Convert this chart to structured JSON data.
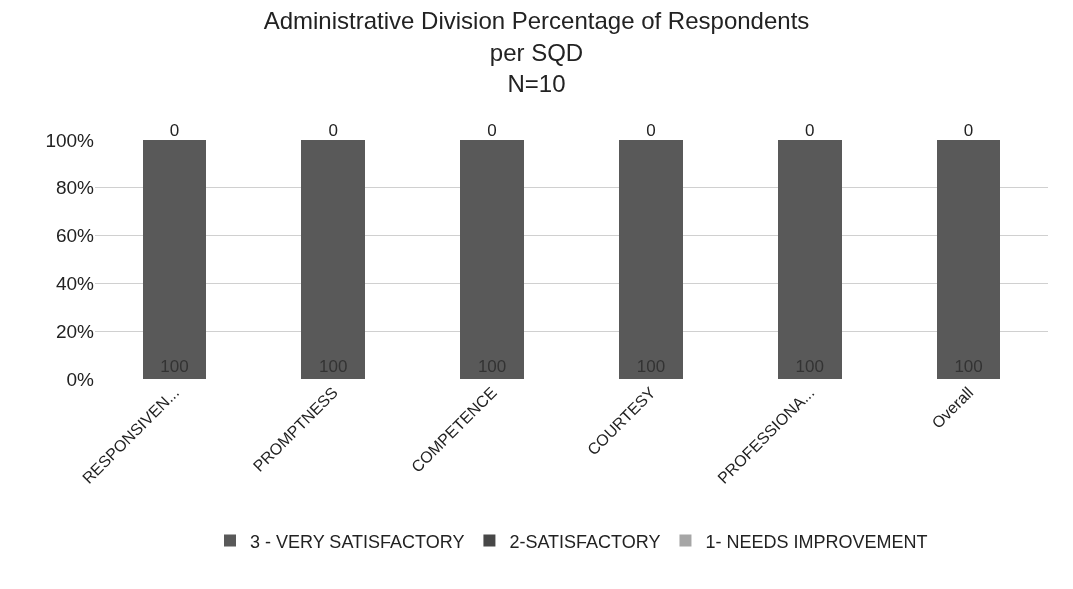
{
  "chart_data": {
    "type": "bar",
    "stacked": true,
    "title": "Administrative Division Percentage of Respondents\nper SQD\nN=10",
    "categories": [
      "RESPONSIVEN...",
      "PROMPTNESS",
      "COMPETENCE",
      "COURTESY",
      "PROFESSIONA...",
      "Overall"
    ],
    "series": [
      {
        "name": "3 - VERY SATISFACTORY",
        "color": "#595959",
        "values": [
          100,
          100,
          100,
          100,
          100,
          100
        ],
        "value_labels": [
          "100",
          "100",
          "100",
          "100",
          "100",
          "100"
        ]
      },
      {
        "name": "2-SATISFACTORY",
        "color": "#474747",
        "values": [
          0,
          0,
          0,
          0,
          0,
          0
        ],
        "value_labels": [
          "0",
          "0",
          "0",
          "0",
          "0",
          "0"
        ]
      },
      {
        "name": "1- NEEDS IMPROVEMENT",
        "color": "#a6a6a6",
        "values": [
          0,
          0,
          0,
          0,
          0,
          0
        ]
      }
    ],
    "ylim": [
      0,
      100
    ],
    "yticks": [
      {
        "value": 0,
        "label": "0%"
      },
      {
        "value": 20,
        "label": "20%"
      },
      {
        "value": 40,
        "label": "40%"
      },
      {
        "value": 60,
        "label": "60%"
      },
      {
        "value": 80,
        "label": "80%"
      },
      {
        "value": 100,
        "label": "100%"
      }
    ],
    "grid": "y",
    "legend": "bottom"
  }
}
